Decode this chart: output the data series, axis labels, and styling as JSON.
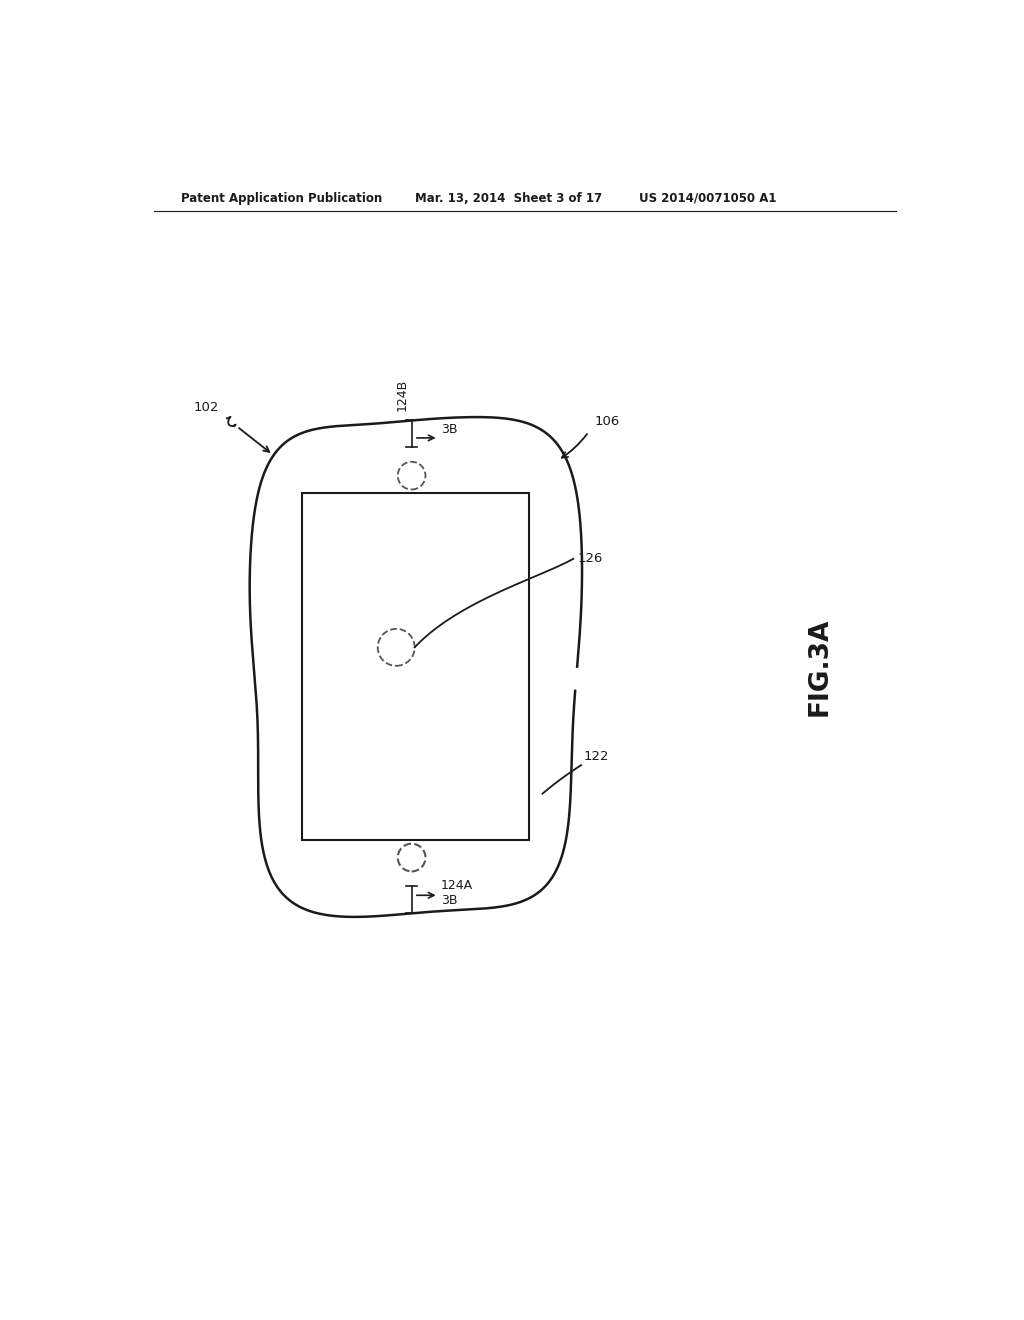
{
  "header_left": "Patent Application Publication",
  "header_mid": "Mar. 13, 2014  Sheet 3 of 17",
  "header_right": "US 2014/0071050 A1",
  "fig_label": "FIG.3A",
  "label_102": "102",
  "label_106": "106",
  "label_122": "122",
  "label_124A": "124A",
  "label_124B": "124B",
  "label_126": "126",
  "label_3B_top": "3B",
  "label_3B_bot": "3B",
  "line_color": "#1a1a1a",
  "bg_color": "#ffffff",
  "dashed_color": "#555555"
}
